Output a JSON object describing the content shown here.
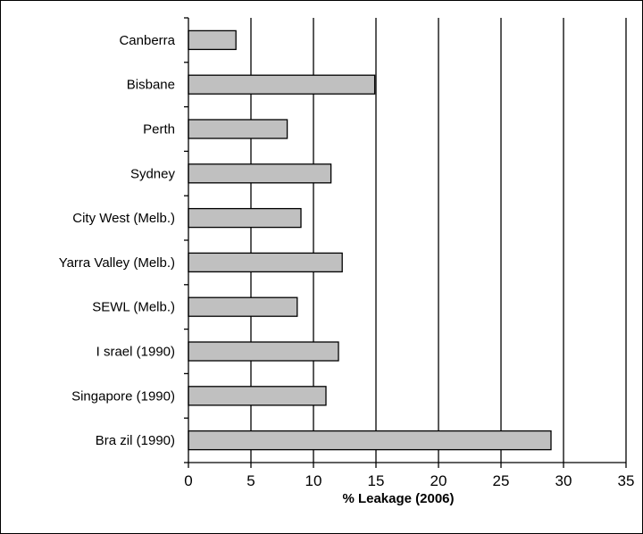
{
  "chart_data": {
    "type": "bar",
    "orientation": "horizontal",
    "categories": [
      "Canberra",
      "Bisbane",
      "Perth",
      "Sydney",
      "City West (Melb.)",
      "Yarra Valley (Melb.)",
      "SEWL (Melb.)",
      "I srael (1990)",
      "Singapore (1990)",
      "Bra zil (1990)"
    ],
    "values": [
      3.8,
      14.9,
      7.9,
      11.4,
      9.0,
      12.3,
      8.7,
      12.0,
      11.0,
      29.0
    ],
    "xlabel": "% Leakage (2006)",
    "xlim": [
      0,
      35
    ],
    "xticks": [
      "0",
      "5",
      "10",
      "15",
      "20",
      "25",
      "30",
      "35"
    ],
    "grid": "vertical",
    "colors": {
      "bar_fill": "#c0c0c0",
      "bar_stroke": "#000000",
      "grid": "#000000",
      "background": "#ffffff"
    }
  }
}
